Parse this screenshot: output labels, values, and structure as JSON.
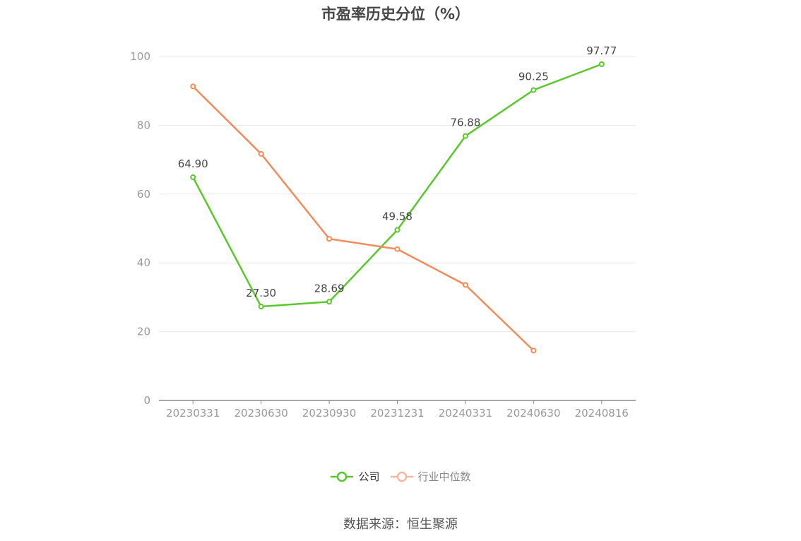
{
  "chart_data": {
    "type": "line",
    "title": "市盈率历史分位（%）",
    "categories": [
      "20230331",
      "20230630",
      "20230930",
      "20231231",
      "20240331",
      "20240630",
      "20240816"
    ],
    "yticks": [
      0,
      20,
      40,
      60,
      80,
      100
    ],
    "ylim": [
      0,
      100
    ],
    "grid": true,
    "legend_position": "bottom",
    "series": [
      {
        "name": "公司",
        "color": "#5ac82d",
        "values": [
          64.9,
          27.3,
          28.69,
          49.58,
          76.88,
          90.25,
          97.77
        ],
        "labels": [
          "64.90",
          "27.30",
          "28.69",
          "49.58",
          "76.88",
          "90.25",
          "97.77"
        ]
      },
      {
        "name": "行业中位数",
        "color": "#f28c5a",
        "legend_color": "#f7b8a0",
        "values": [
          91.3,
          71.7,
          47.0,
          44.0,
          33.6,
          14.5,
          null
        ]
      }
    ]
  },
  "source": "数据来源：恒生聚源"
}
